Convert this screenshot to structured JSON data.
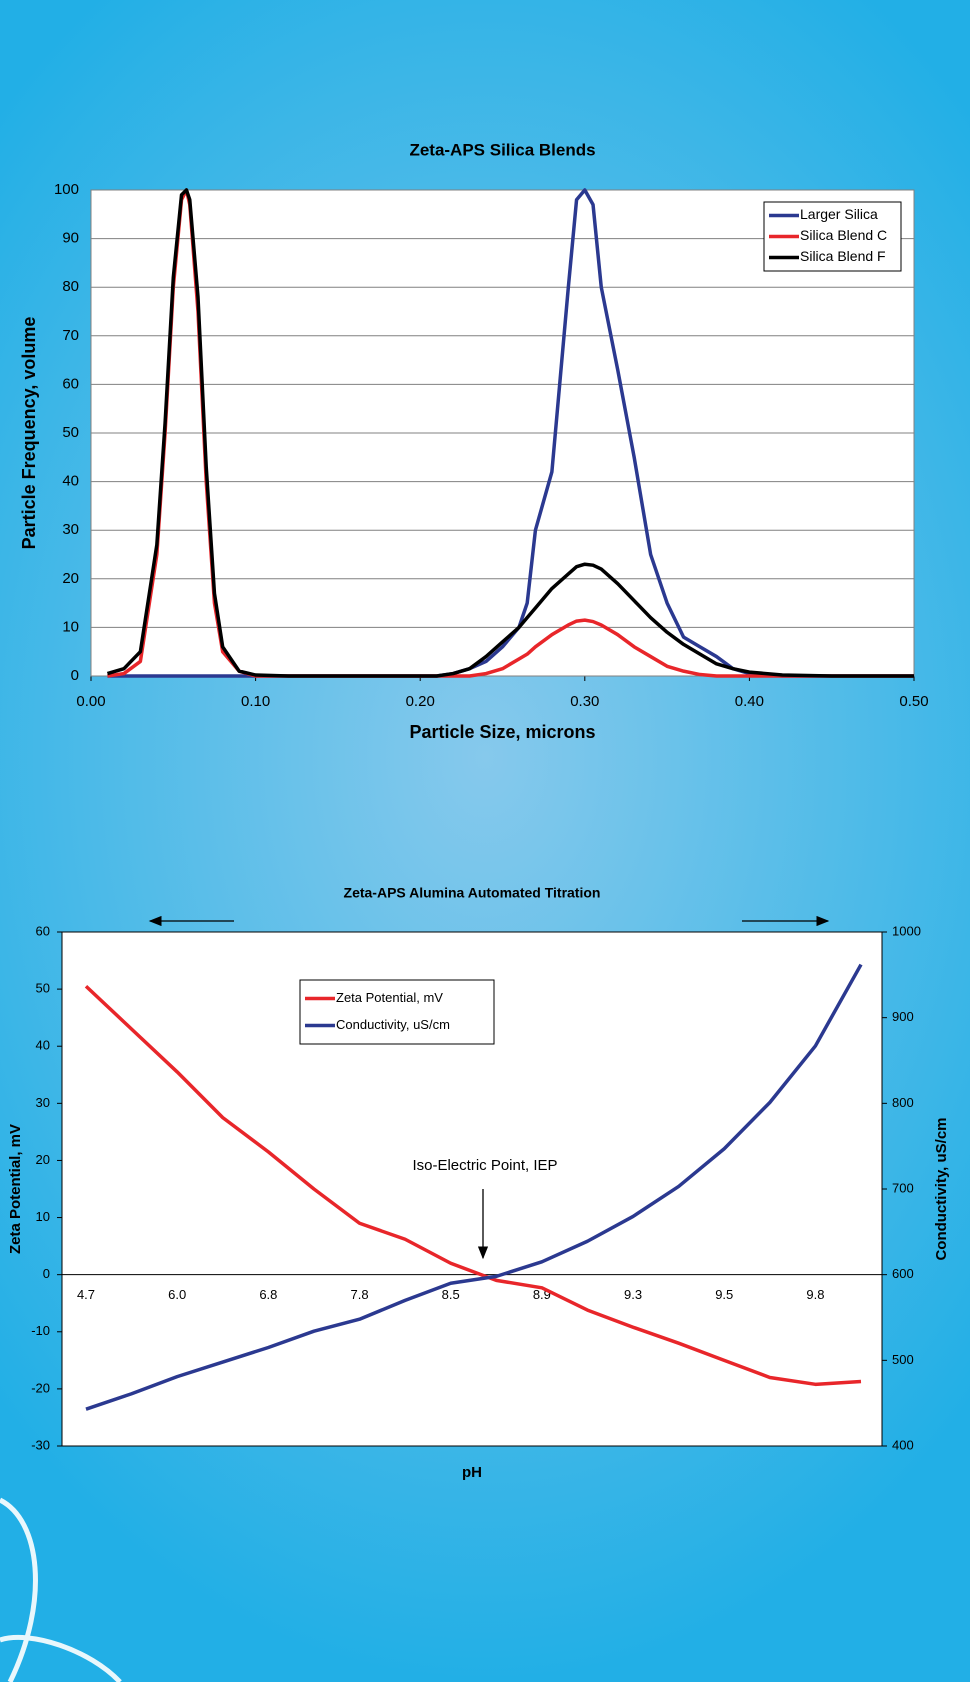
{
  "chart_data": [
    {
      "type": "line",
      "title": "Zeta-APS Silica Blends",
      "x_label": "Particle Size, microns",
      "y_label": "Particle Frequency, volume",
      "x": [
        0.01,
        0.02,
        0.03,
        0.04,
        0.045,
        0.05,
        0.055,
        0.058,
        0.06,
        0.065,
        0.07,
        0.075,
        0.08,
        0.09,
        0.1,
        0.12,
        0.15,
        0.2,
        0.21,
        0.22,
        0.23,
        0.24,
        0.25,
        0.26,
        0.265,
        0.27,
        0.28,
        0.29,
        0.295,
        0.3,
        0.305,
        0.31,
        0.32,
        0.33,
        0.34,
        0.35,
        0.36,
        0.37,
        0.38,
        0.39,
        0.4,
        0.42,
        0.45,
        0.5
      ],
      "series": [
        {
          "name": "Larger Silica",
          "color": "#2b3990",
          "values": [
            0,
            0,
            0,
            0,
            0,
            0,
            0,
            0,
            0,
            0,
            0,
            0,
            0,
            0,
            0,
            0,
            0,
            0,
            0,
            0.5,
            1.5,
            3,
            6,
            10,
            15,
            30,
            42,
            80,
            98,
            100,
            97,
            80,
            63,
            45,
            25,
            15,
            8,
            6,
            4,
            1.5,
            0.5,
            0,
            0,
            0
          ]
        },
        {
          "name": "Silica Blend C",
          "color": "#e8262a",
          "values": [
            0,
            0.5,
            3,
            25,
            50,
            80,
            98,
            100,
            97,
            75,
            40,
            15,
            5,
            1,
            0,
            0,
            0,
            0,
            0,
            0,
            0,
            0.5,
            1.5,
            3.5,
            4.5,
            6,
            8.5,
            10.5,
            11.3,
            11.5,
            11.2,
            10.5,
            8.5,
            6,
            4,
            2,
            1,
            0.3,
            0,
            0,
            0,
            0,
            0,
            0
          ]
        },
        {
          "name": "Silica Blend F",
          "color": "#000000",
          "values": [
            0.5,
            1.5,
            5,
            27,
            52,
            82,
            99,
            100,
            98,
            78,
            43,
            17,
            6,
            1,
            0.2,
            0,
            0,
            0,
            0,
            0.5,
            1.5,
            4,
            7,
            10,
            12,
            14,
            18,
            21,
            22.5,
            23,
            22.8,
            22,
            19,
            15.5,
            12,
            9,
            6.5,
            4.5,
            2.5,
            1.5,
            0.8,
            0.2,
            0,
            0
          ]
        }
      ],
      "xlim": [
        0,
        0.5
      ],
      "xticks": [
        {
          "value": 0,
          "label": "0.00"
        },
        {
          "value": 0.1,
          "label": "0.10"
        },
        {
          "value": 0.2,
          "label": "0.20"
        },
        {
          "value": 0.3,
          "label": "0.30"
        },
        {
          "value": 0.4,
          "label": "0.40"
        },
        {
          "value": 0.5,
          "label": "0.50"
        }
      ],
      "ylim": [
        0,
        100
      ],
      "yticks": [
        0,
        10,
        20,
        30,
        40,
        50,
        60,
        70,
        80,
        90,
        100
      ],
      "grid": true,
      "legend": "upper right"
    },
    {
      "type": "line",
      "title": "Zeta-APS Alumina Automated Titration",
      "x_label": "pH",
      "y_label": "Zeta Potential, mV",
      "y2_label": "Conductivity, uS/cm",
      "annotation": "Iso-Electric Point, IEP",
      "categories": [
        "4.7",
        null,
        "6.0",
        null,
        "6.8",
        null,
        "7.8",
        null,
        "8.5",
        null,
        "8.9",
        null,
        "9.3",
        null,
        "9.5",
        null,
        "9.8",
        null
      ],
      "series": [
        {
          "name": "Zeta Potential, mV",
          "color": "#e8262a",
          "values": [
            50.5,
            43,
            35.5,
            27.5,
            21.5,
            15,
            9,
            6.2,
            2,
            -1,
            -2.3,
            -6.2,
            -9.2,
            -12,
            -15,
            -18,
            -19.2,
            -18.7
          ]
        },
        {
          "name": "Conductivity, uS/cm",
          "color": "#2b3990",
          "axis": "y2",
          "values": [
            443,
            461,
            481,
            498,
            515,
            534,
            548,
            570,
            590,
            598,
            615,
            639,
            668,
            703,
            747,
            801,
            867,
            962
          ]
        }
      ],
      "ylim": [
        -30,
        60
      ],
      "yticks": [
        -30,
        -20,
        -10,
        0,
        10,
        20,
        30,
        40,
        50,
        60
      ],
      "y2lim": [
        400,
        1000
      ],
      "y2ticks": [
        400,
        500,
        600,
        700,
        800,
        900,
        1000
      ],
      "grid": false,
      "legend": "upper center"
    }
  ]
}
